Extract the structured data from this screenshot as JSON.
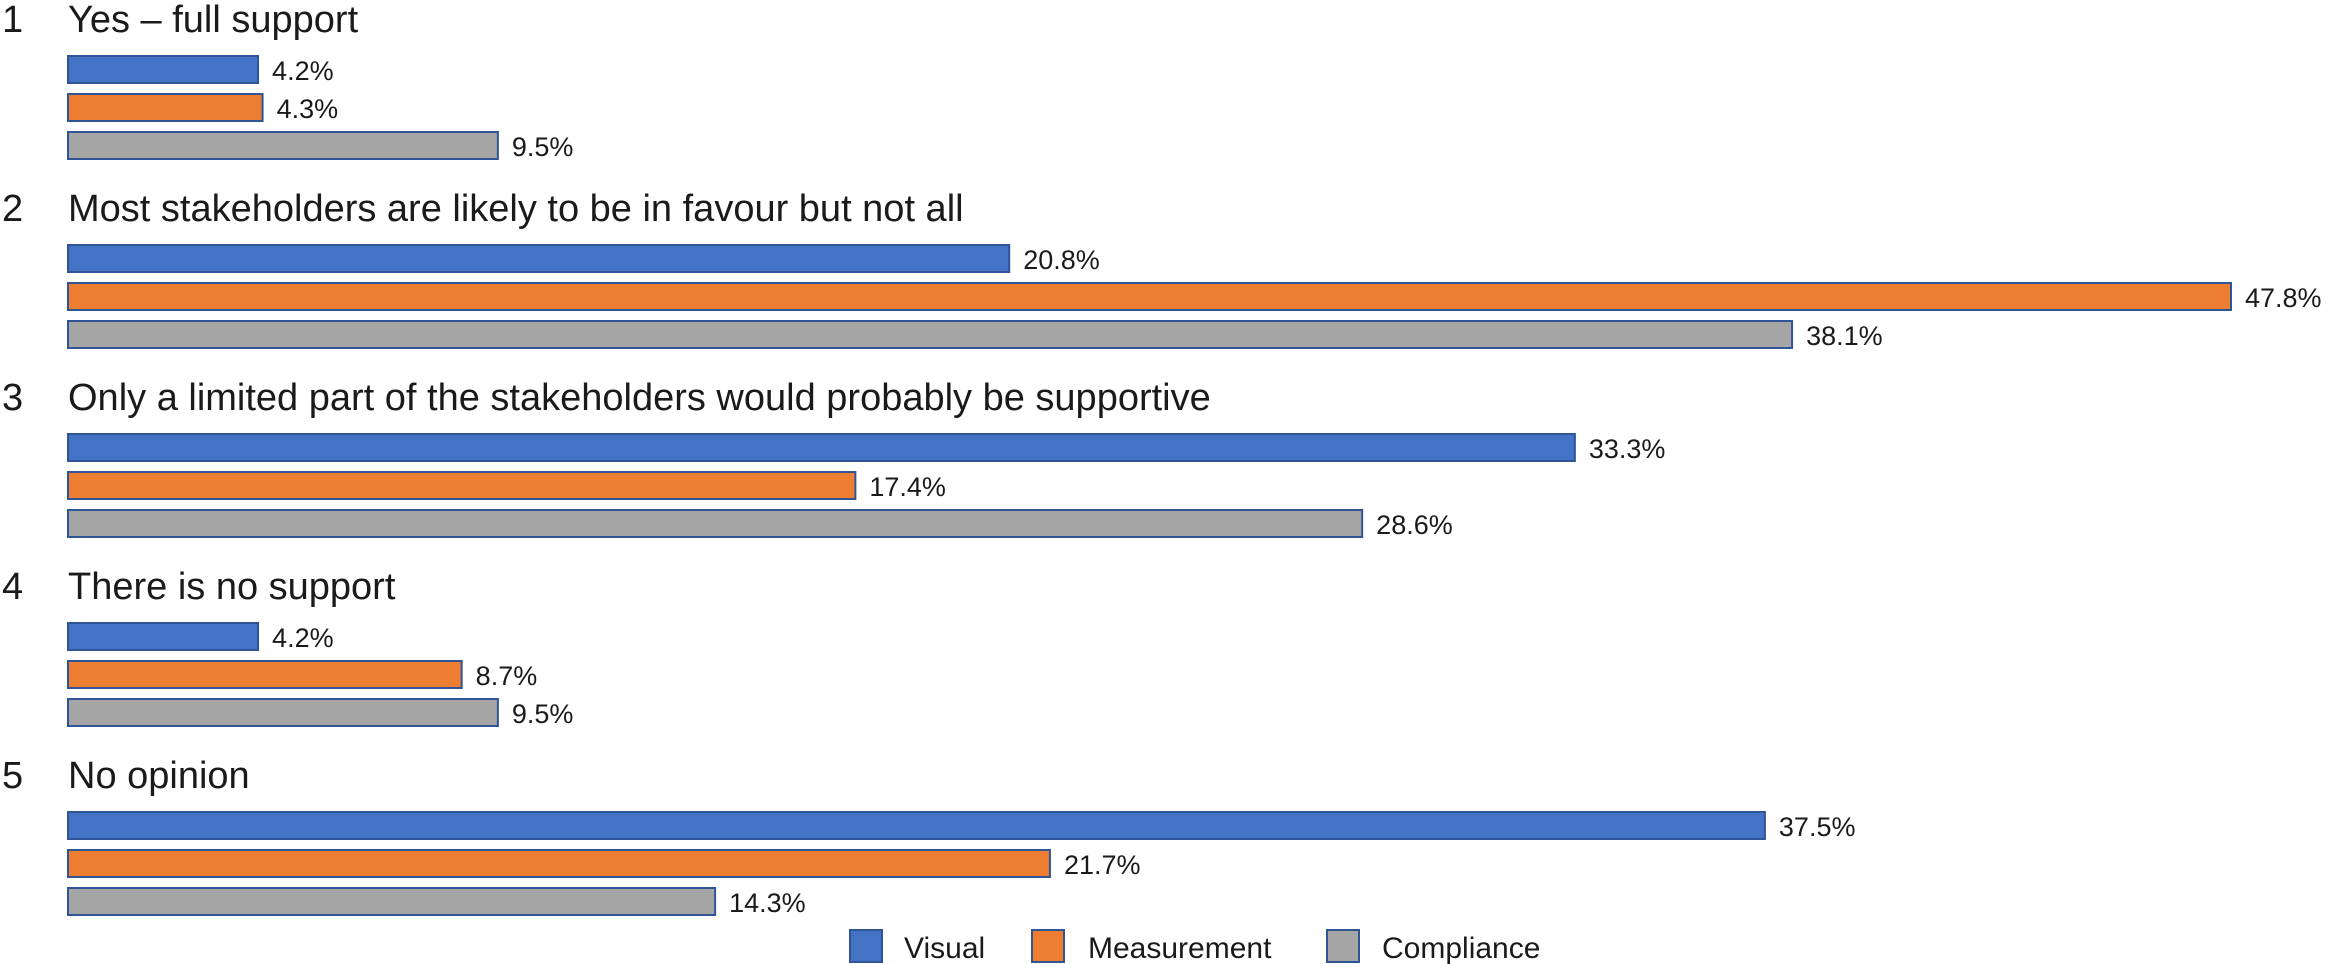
{
  "chart_data": {
    "type": "bar",
    "orientation": "horizontal",
    "categories": [
      {
        "number": "1",
        "label": "Yes – full support"
      },
      {
        "number": "2",
        "label": "Most stakeholders are likely to be in favour but not all"
      },
      {
        "number": "3",
        "label": "Only a limited part of the stakeholders would probably be supportive"
      },
      {
        "number": "4",
        "label": "There is no support"
      },
      {
        "number": "5",
        "label": "No opinion"
      }
    ],
    "series": [
      {
        "name": "Visual",
        "color": "#4472C4",
        "values": [
          4.2,
          20.8,
          33.3,
          4.2,
          37.5
        ],
        "labels": [
          "4.2%",
          "20.8%",
          "33.3%",
          "4.2%",
          "37.5%"
        ]
      },
      {
        "name": "Measurement",
        "color": "#ED7D31",
        "values": [
          4.3,
          47.8,
          17.4,
          8.7,
          21.7
        ],
        "labels": [
          "4.3%",
          "47.8%",
          "17.4%",
          "8.7%",
          "21.7%"
        ]
      },
      {
        "name": "Compliance",
        "color": "#A5A5A5",
        "values": [
          9.5,
          38.1,
          28.6,
          9.5,
          14.3
        ],
        "labels": [
          "9.5%",
          "38.1%",
          "28.6%",
          "9.5%",
          "14.3%"
        ]
      }
    ],
    "xlim": [
      0,
      47.8
    ],
    "unit": "%",
    "bar_border_color": "#2F5597",
    "grid": false,
    "legend_position": "bottom-center",
    "title": "",
    "xlabel": "",
    "ylabel": ""
  }
}
